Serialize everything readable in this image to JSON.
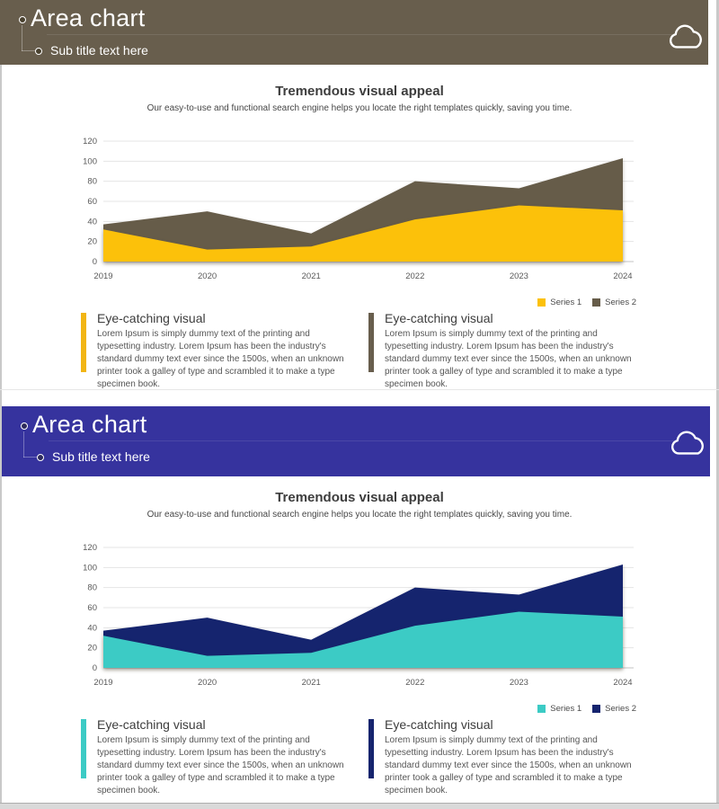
{
  "slides": [
    {
      "banner": {
        "title": "Area chart",
        "subtitle": "Sub title text here",
        "bg_color": "#685E4D",
        "icon": "cloud"
      },
      "chart_header": {
        "title": "Tremendous visual appeal",
        "subtitle": "Our easy-to-use and functional search engine helps you locate the right templates quickly, saving you time."
      },
      "chart_data": {
        "type": "area",
        "x": [
          2019,
          2020,
          2021,
          2022,
          2023,
          2024
        ],
        "series": [
          {
            "name": "Series 1",
            "values": [
              32,
              12,
              15,
              42,
              56,
              51
            ],
            "color": "#FCC10A"
          },
          {
            "name": "Series 2",
            "values": [
              37,
              50,
              28,
              80,
              73,
              103
            ],
            "color": "#665C49"
          }
        ],
        "ylim": [
          0,
          120
        ],
        "ytick_step": 20,
        "grid": true,
        "legend_position": "bottom-right",
        "overlapping": true
      },
      "callouts": [
        {
          "title": "Eye-catching visual",
          "color": "#F2B514",
          "body": "Lorem Ipsum is simply dummy text of the printing and typesetting industry. Lorem Ipsum has been the industry's standard dummy text ever since the 1500s, when an unknown printer took a galley of type and scrambled it to make a type specimen book."
        },
        {
          "title": "Eye-catching visual",
          "color": "#685E4D",
          "body": "Lorem Ipsum is simply dummy text of the printing and typesetting industry. Lorem Ipsum has been the industry's standard dummy text ever since the 1500s, when an unknown printer took a galley of type and scrambled it to make a type specimen book."
        }
      ]
    },
    {
      "banner": {
        "title": "Area chart",
        "subtitle": "Sub title text here",
        "bg_color": "#36339E",
        "icon": "cloud"
      },
      "chart_header": {
        "title": "Tremendous visual appeal",
        "subtitle": "Our easy-to-use and functional search engine helps you locate the right templates quickly, saving you time."
      },
      "chart_data": {
        "type": "area",
        "x": [
          2019,
          2020,
          2021,
          2022,
          2023,
          2024
        ],
        "series": [
          {
            "name": "Series 1",
            "values": [
              32,
              12,
              15,
              42,
              56,
              51
            ],
            "color": "#3CCBC5"
          },
          {
            "name": "Series 2",
            "values": [
              37,
              50,
              28,
              80,
              73,
              103
            ],
            "color": "#15246E"
          }
        ],
        "ylim": [
          0,
          120
        ],
        "ytick_step": 20,
        "grid": true,
        "legend_position": "bottom-right",
        "overlapping": true
      },
      "callouts": [
        {
          "title": "Eye-catching visual",
          "color": "#3CCBC5",
          "body": "Lorem Ipsum is simply dummy text of the printing and typesetting industry. Lorem Ipsum has been the industry's standard dummy text ever since the 1500s, when an unknown printer took a galley of type and scrambled it to make a type specimen book."
        },
        {
          "title": "Eye-catching visual",
          "color": "#15246E",
          "body": "Lorem Ipsum is simply dummy text of the printing and typesetting industry. Lorem Ipsum has been the industry's standard dummy text ever since the 1500s, when an unknown printer took a galley of type and scrambled it to make a type specimen book."
        }
      ]
    }
  ]
}
